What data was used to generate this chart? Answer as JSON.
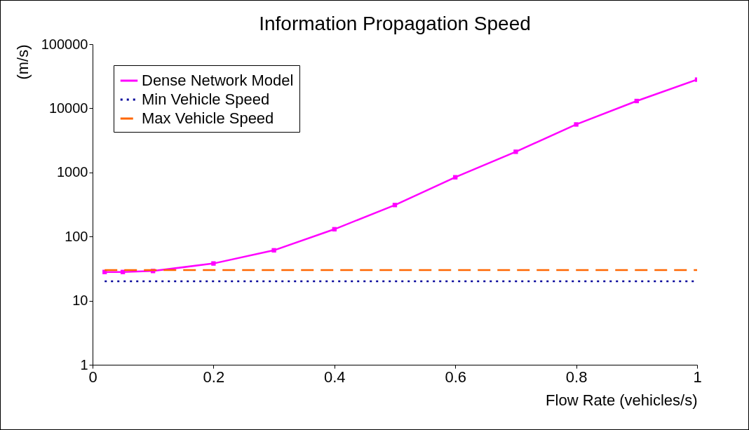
{
  "chart_data": {
    "type": "line",
    "title": "Information Propagation Speed",
    "xlabel": "Flow Rate (vehicles/s)",
    "ylabel": "(m/s)",
    "x": [
      0.02,
      0.05,
      0.1,
      0.2,
      0.3,
      0.4,
      0.5,
      0.6,
      0.7,
      0.8,
      0.9,
      1
    ],
    "series": [
      {
        "name": "Dense Network Model",
        "color": "#ff00ff",
        "marker": "square",
        "line_style": "solid",
        "values": [
          28,
          28,
          29,
          38,
          61,
          130,
          310,
          840,
          2100,
          5600,
          13000,
          28000
        ]
      },
      {
        "name": "Min Vehicle Speed",
        "color": "#000099",
        "marker": "none",
        "line_style": "dotted",
        "values": [
          20,
          20,
          20,
          20,
          20,
          20,
          20,
          20,
          20,
          20,
          20,
          20
        ]
      },
      {
        "name": "Max Vehicle Speed",
        "color": "#ff6600",
        "marker": "none",
        "line_style": "dashed",
        "values": [
          30,
          30,
          30,
          30,
          30,
          30,
          30,
          30,
          30,
          30,
          30,
          30
        ]
      }
    ],
    "xlim": [
      0,
      1
    ],
    "xticks": [
      0,
      0.2,
      0.4,
      0.6,
      0.8,
      1
    ],
    "ylim": [
      1,
      100000
    ],
    "yticks": [
      1,
      10,
      100,
      1000,
      10000,
      100000
    ],
    "log": true,
    "grid": false,
    "legend": "top left"
  }
}
